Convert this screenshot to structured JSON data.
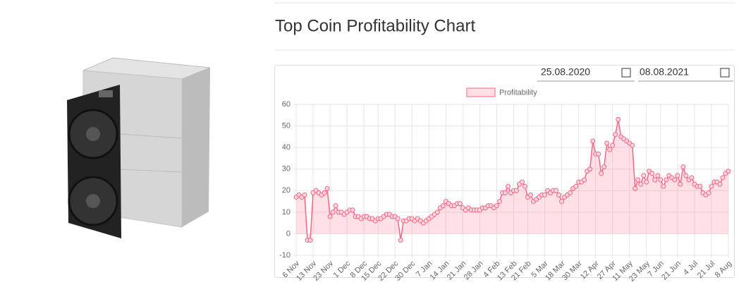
{
  "page": {
    "title": "Top Coin Profitability Chart",
    "date_from": "25.08.2020",
    "date_to": "08.08.2021"
  },
  "chart_data": {
    "type": "line",
    "categories": [
      "6 Nov",
      null,
      null,
      null,
      null,
      null,
      "13 Nov",
      null,
      null,
      null,
      null,
      null,
      "23 Nov",
      null,
      null,
      null,
      null,
      null,
      "1 Dec",
      null,
      null,
      null,
      null,
      null,
      "8 Dec",
      null,
      null,
      null,
      null,
      "15 Dec",
      null,
      null,
      null,
      null,
      null,
      "22 Dec",
      null,
      null,
      null,
      null,
      null,
      "30 Dec",
      null,
      null,
      null,
      null,
      null,
      "7 Jan",
      null,
      null,
      null,
      null,
      null,
      "14 Jan",
      null,
      null,
      null,
      null,
      null,
      "21 Jan",
      null,
      null,
      null,
      null,
      null,
      "28 Jan",
      null,
      null,
      null,
      null,
      null,
      "4 Feb",
      null,
      null,
      null,
      null,
      null,
      "13 Feb",
      null,
      null,
      null,
      null,
      "21 Feb",
      null,
      null,
      null,
      null,
      null,
      "5 Mar",
      null,
      null,
      null,
      null,
      null,
      "18 Mar",
      null,
      null,
      null,
      null,
      null,
      "30 Mar",
      null,
      null,
      null,
      null,
      null,
      "12 Apr",
      null,
      null,
      null,
      null,
      null,
      "27 Apr",
      null,
      null,
      null,
      null,
      null,
      "11 May",
      null,
      null,
      null,
      null,
      null,
      "23 May",
      null,
      null,
      null,
      null,
      "7 Jun",
      null,
      null,
      null,
      null,
      null,
      "21 Jun",
      null,
      null,
      null,
      null,
      null,
      "4 Jul",
      null,
      null,
      null,
      null,
      null,
      "21 Jul",
      null,
      null,
      null,
      null,
      null,
      "8 Aug"
    ],
    "series": [
      {
        "name": "Profitability",
        "color": "#ff6384",
        "values": [
          17,
          18,
          17,
          18,
          -3,
          -3,
          19,
          20,
          19,
          18,
          19,
          21,
          8,
          10,
          13,
          10,
          10,
          9,
          10,
          11,
          11,
          8,
          8,
          7,
          8,
          8,
          7,
          7,
          6,
          7,
          7,
          8,
          9,
          9,
          8,
          8,
          7,
          -3,
          6,
          6,
          7,
          7,
          6,
          7,
          6,
          5,
          6,
          7,
          8,
          9,
          10,
          12,
          13,
          15,
          14,
          13,
          13,
          14,
          14,
          12,
          11,
          12,
          11,
          11,
          11,
          11,
          12,
          12,
          13,
          13,
          12,
          13,
          15,
          19,
          19,
          22,
          19,
          20,
          20,
          23,
          24,
          22,
          17,
          18,
          15,
          16,
          17,
          18,
          18,
          20,
          19,
          20,
          20,
          18,
          15,
          17,
          18,
          19,
          21,
          22,
          24,
          24,
          25,
          29,
          30,
          43,
          37,
          37,
          28,
          31,
          42,
          39,
          41,
          46,
          53,
          45,
          44,
          43,
          42,
          41,
          21,
          25,
          23,
          27,
          24,
          29,
          28,
          25,
          27,
          25,
          22,
          25,
          27,
          26,
          25,
          27,
          23,
          31,
          27,
          25,
          26,
          23,
          22,
          22,
          19,
          18,
          19,
          22,
          24,
          24,
          23,
          26,
          28,
          29
        ]
      }
    ],
    "ylim": [
      -10,
      60
    ],
    "yticks": [
      -10,
      0,
      10,
      20,
      30,
      40,
      50,
      60
    ],
    "grid": true,
    "legend": "top"
  }
}
